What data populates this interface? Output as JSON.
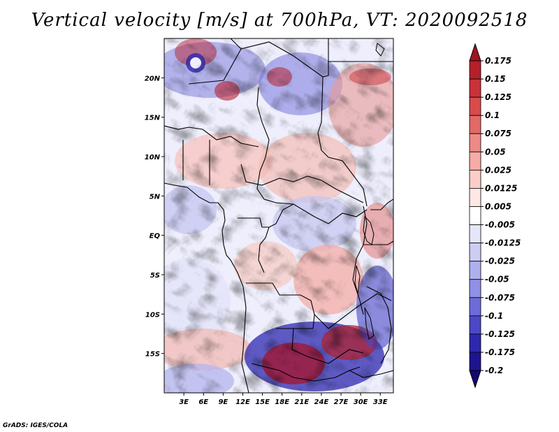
{
  "title": "Vertical velocity [m/s] at 700hPa, VT: 2020092518",
  "credit": "GrADS: IGES/COLA",
  "map": {
    "lat_labels": [
      "20N",
      "15N",
      "10N",
      "5N",
      "EQ",
      "5S",
      "10S",
      "15S"
    ],
    "lat_values": [
      20,
      15,
      10,
      5,
      0,
      -5,
      -10,
      -15
    ],
    "lon_labels": [
      "3E",
      "6E",
      "9E",
      "12E",
      "15E",
      "18E",
      "21E",
      "24E",
      "27E",
      "30E",
      "33E"
    ],
    "lon_values": [
      3,
      6,
      9,
      12,
      15,
      18,
      21,
      24,
      27,
      30,
      33
    ],
    "lat_range": [
      -20,
      25
    ],
    "lon_range": [
      0,
      35
    ]
  },
  "colorbar": {
    "labels": [
      "0.175",
      "0.15",
      "0.125",
      "0.1",
      "0.075",
      "0.05",
      "0.025",
      "0.0125",
      "0.005",
      "-0.005",
      "-0.0125",
      "-0.025",
      "-0.05",
      "-0.075",
      "-0.1",
      "-0.125",
      "-0.175",
      "-0.2"
    ],
    "colors": [
      "#a0141e",
      "#b4202a",
      "#c8323a",
      "#d84b4b",
      "#e26a66",
      "#ec8b86",
      "#f5aca6",
      "#fbcdc8",
      "#fde8e5",
      "#ffffff",
      "#e6e6fb",
      "#cccdf5",
      "#aeb0ee",
      "#9090e6",
      "#6c6cd8",
      "#4a48c6",
      "#2d28ac",
      "#1e1490",
      "#140870"
    ]
  }
}
